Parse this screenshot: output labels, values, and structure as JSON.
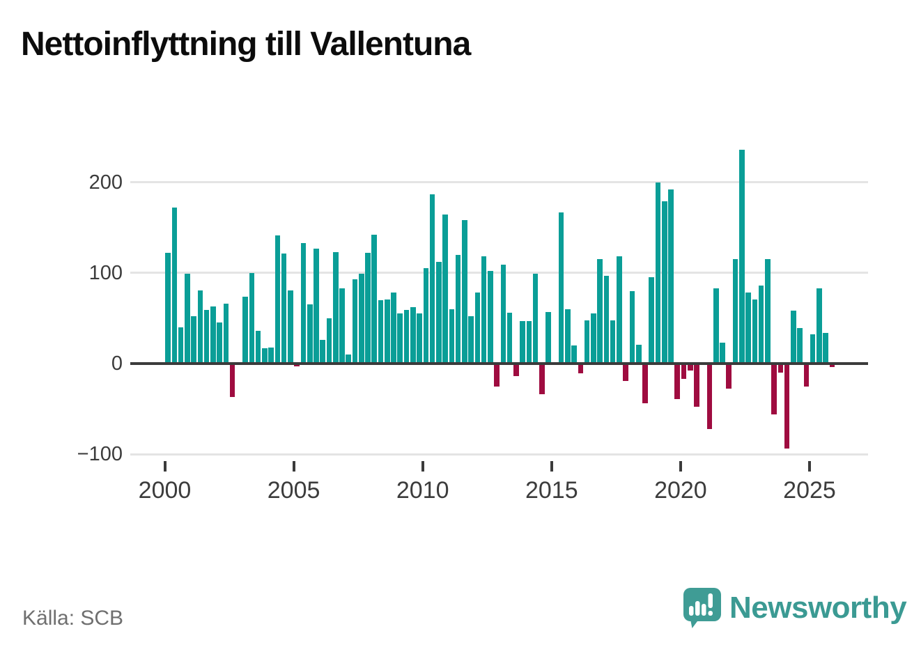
{
  "page": {
    "title_label": "Nettoinflyttning till Vallentuna",
    "source_label": "Källa: SCB"
  },
  "brand": {
    "name": "Newsworthy",
    "logo_icon": "speech-bubble-bar-chart-icon",
    "color": "#3b9a93"
  },
  "chart_data": {
    "type": "bar",
    "title": "Nettoinflyttning till Vallentuna",
    "xlabel": "",
    "ylabel": "",
    "frequency": "quarterly",
    "start_quarter": "2000-Q1",
    "end_quarter": "2025-Q4",
    "x_tick_years": [
      2000,
      2005,
      2010,
      2015,
      2020,
      2025
    ],
    "y_ticks": [
      200,
      100,
      0,
      -100
    ],
    "ylim": [
      -110,
      248
    ],
    "grid": true,
    "legend": "none",
    "colors": {
      "positive": "#0a9e97",
      "negative": "#9f0c40"
    },
    "series": [
      {
        "name": "Nettoinflyttning",
        "values": [
          122,
          172,
          40,
          99,
          52,
          81,
          59,
          63,
          45,
          66,
          -37,
          0,
          74,
          100,
          36,
          17,
          18,
          141,
          121,
          81,
          -3,
          133,
          65,
          127,
          26,
          50,
          123,
          83,
          10,
          93,
          99,
          122,
          142,
          70,
          71,
          78,
          55,
          59,
          62,
          55,
          105,
          187,
          112,
          164,
          60,
          120,
          158,
          52,
          78,
          118,
          102,
          -25,
          109,
          56,
          -14,
          47,
          47,
          99,
          -34,
          57,
          0,
          167,
          60,
          20,
          -11,
          48,
          55,
          115,
          97,
          48,
          118,
          -19,
          80,
          21,
          -44,
          95,
          200,
          179,
          192,
          -39,
          -17,
          -8,
          -48,
          0,
          -72,
          83,
          23,
          -28,
          115,
          236,
          78,
          71,
          86,
          115,
          -56,
          -10,
          -94,
          58,
          39,
          -25,
          32,
          83,
          34,
          -4
        ]
      }
    ]
  }
}
